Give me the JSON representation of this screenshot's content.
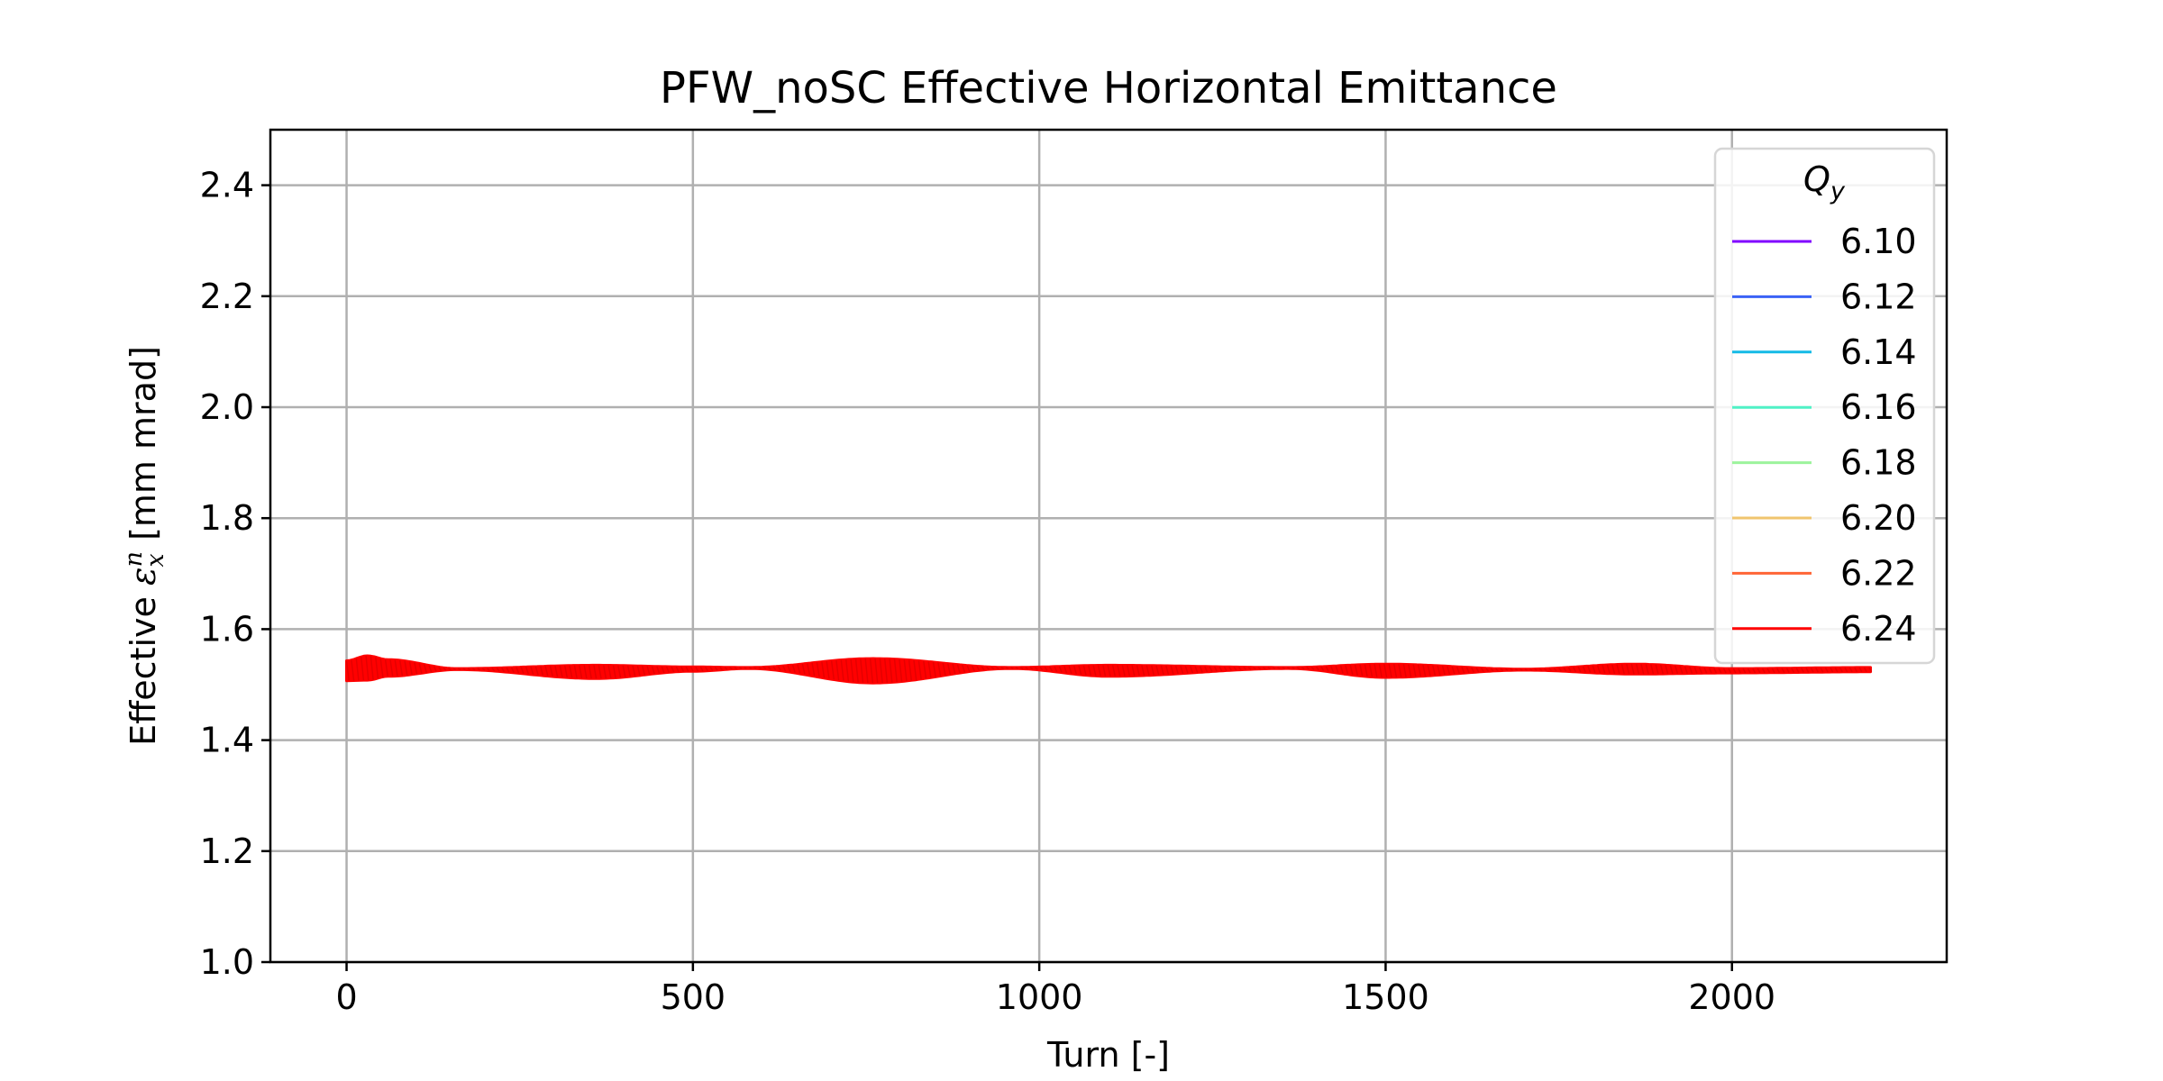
{
  "chart_data": {
    "type": "line",
    "title": "PFW_noSC Effective Horizontal Emittance",
    "xlabel": "Turn [-]",
    "ylabel": {
      "prefix": "Effective ",
      "symbol": "ε",
      "subscript": "x",
      "superscript": "n",
      "suffix": " [mm mrad]"
    },
    "xlim": [
      -110,
      2310
    ],
    "ylim": [
      1.0,
      2.5
    ],
    "xticks": [
      0,
      500,
      1000,
      1500,
      2000
    ],
    "xtick_labels": [
      "0",
      "500",
      "1000",
      "1500",
      "2000"
    ],
    "yticks": [
      1.0,
      1.2,
      1.4,
      1.6,
      1.8,
      2.0,
      2.2,
      2.4
    ],
    "ytick_labels": [
      "1.0",
      "1.2",
      "1.4",
      "1.6",
      "1.8",
      "2.0",
      "2.2",
      "2.4"
    ],
    "grid": true,
    "legend": {
      "placement": "top-right",
      "title_main": "Q",
      "title_sub": "y"
    },
    "series": [
      {
        "name": "6.10",
        "color": "#8000ff",
        "visible": false
      },
      {
        "name": "6.12",
        "color": "#3a62f6",
        "visible": false
      },
      {
        "name": "6.14",
        "color": "#14bae6",
        "visible": false
      },
      {
        "name": "6.16",
        "color": "#4ff1c6",
        "visible": false
      },
      {
        "name": "6.18",
        "color": "#9cf39c",
        "visible": false
      },
      {
        "name": "6.20",
        "color": "#f0c56e",
        "visible": false
      },
      {
        "name": "6.22",
        "color": "#ff6536",
        "visible": false
      },
      {
        "name": "6.24",
        "color": "#ff0000",
        "visible": true,
        "turn_range": [
          0,
          2200
        ],
        "mean_envelope": {
          "x": [
            0,
            30,
            60,
            160,
            360,
            500,
            580,
            760,
            960,
            1100,
            1360,
            1500,
            1700,
            1860,
            2000,
            2200
          ],
          "mean": [
            1.525,
            1.53,
            1.53,
            1.528,
            1.523,
            1.528,
            1.53,
            1.525,
            1.53,
            1.525,
            1.53,
            1.525,
            1.527,
            1.528,
            1.525,
            1.527
          ],
          "half_width": [
            0.018,
            0.022,
            0.015,
            0.001,
            0.012,
            0.004,
            0.001,
            0.022,
            0.001,
            0.01,
            0.001,
            0.012,
            0.001,
            0.009,
            0.004,
            0.004
          ]
        }
      }
    ]
  }
}
